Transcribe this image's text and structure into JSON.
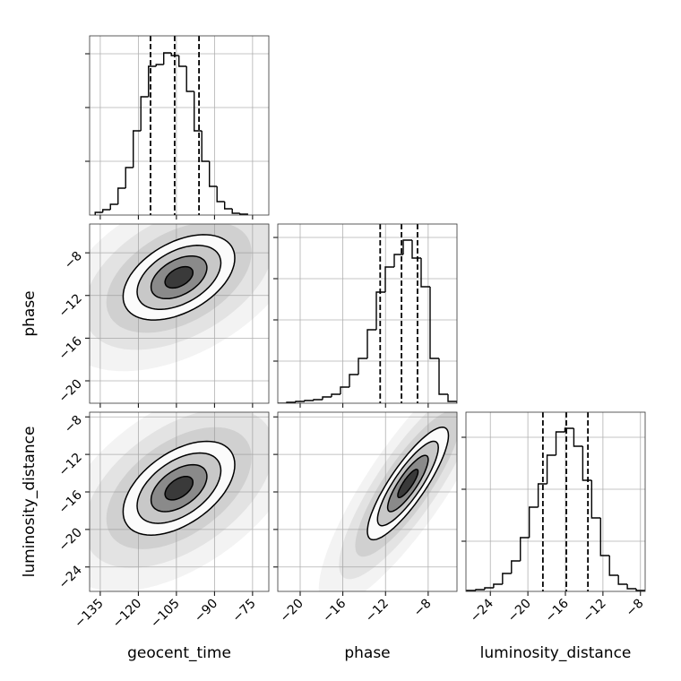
{
  "chart_data": {
    "type": "corner",
    "grid": true,
    "parameters": [
      {
        "name": "geocent_time",
        "lim": [
          -139.2,
          -68.6
        ],
        "ticks": [
          {
            "value": -135,
            "label": "−135"
          },
          {
            "value": -120,
            "label": "−120"
          },
          {
            "value": -105,
            "label": "−105"
          },
          {
            "value": -90,
            "label": "−90"
          },
          {
            "value": -75,
            "label": "−75"
          }
        ]
      },
      {
        "name": "phase",
        "lim": [
          -22.1,
          -5.3
        ],
        "ticks": [
          {
            "value": -20,
            "label": "−20"
          },
          {
            "value": -16,
            "label": "−16"
          },
          {
            "value": -12,
            "label": "−12"
          },
          {
            "value": -8,
            "label": "−8"
          }
        ]
      },
      {
        "name": "luminosity_distance",
        "lim": [
          -26.6,
          -7.5
        ],
        "ticks": [
          {
            "value": -24,
            "label": "−24"
          },
          {
            "value": -20,
            "label": "−20"
          },
          {
            "value": -16,
            "label": "−16"
          },
          {
            "value": -12,
            "label": "−12"
          },
          {
            "value": -8,
            "label": "−8"
          }
        ]
      }
    ],
    "histograms": [
      {
        "bins": [
          -137,
          -134,
          -131,
          -128,
          -125,
          -122,
          -119,
          -116,
          -113,
          -110,
          -107,
          -104,
          -101,
          -98,
          -95,
          -92,
          -89,
          -86,
          -83,
          -80,
          -77
        ],
        "counts": [
          3,
          6,
          12,
          30,
          53,
          94,
          132,
          166,
          168,
          181,
          178,
          166,
          138,
          94,
          60,
          32,
          15,
          7,
          2,
          1
        ],
        "quantiles": [
          -115.2,
          -105.7,
          -96.1
        ],
        "ylim": [
          0,
          200
        ],
        "yticks": [
          60,
          120,
          180
        ]
      },
      {
        "bins": [
          -22.1,
          -21.26,
          -20.42,
          -19.58,
          -18.74,
          -17.9,
          -17.06,
          -16.22,
          -15.38,
          -14.54,
          -13.7,
          -12.86,
          -12.02,
          -11.18,
          -10.34,
          -9.5,
          -8.66,
          -7.82,
          -6.98,
          -6.14,
          -5.3
        ],
        "counts": [
          0,
          1,
          2,
          3,
          4,
          7,
          10,
          18,
          32,
          50,
          82,
          124,
          152,
          166,
          182,
          162,
          130,
          50,
          10,
          2
        ],
        "quantiles": [
          -12.5,
          -10.5,
          -9.0
        ],
        "ylim": [
          0,
          200
        ],
        "yticks": [
          47,
          93,
          139,
          185
        ]
      },
      {
        "bins": [
          -26.5,
          -25.55,
          -24.6,
          -23.65,
          -22.7,
          -21.75,
          -20.8,
          -19.85,
          -18.9,
          -17.95,
          -17,
          -16.05,
          -15.1,
          -14.15,
          -13.2,
          -12.25,
          -11.3,
          -10.35,
          -9.4,
          -8.45,
          -7.5
        ],
        "counts": [
          1,
          2,
          4,
          8,
          20,
          34,
          60,
          94,
          120,
          152,
          178,
          182,
          162,
          124,
          82,
          40,
          18,
          8,
          3,
          1
        ],
        "quantiles": [
          -18.4,
          -15.9,
          -13.6
        ],
        "ylim": [
          0,
          200
        ],
        "yticks": [
          56,
          114,
          172
        ]
      }
    ],
    "pairs": [
      {
        "center": [
          -104,
          -10.3
        ],
        "sigma": [
          11,
          2.0
        ],
        "rho": 0.45,
        "levels": [
          0.5,
          1,
          1.5,
          2
        ]
      },
      {
        "center": [
          -104,
          -15.6
        ],
        "sigma": [
          11,
          2.5
        ],
        "rho": 0.5,
        "levels": [
          0.5,
          1,
          1.5,
          2
        ]
      },
      {
        "center": [
          -9.9,
          -15.1
        ],
        "sigma": [
          1.9,
          3.0
        ],
        "rho": 0.85,
        "levels": [
          0.5,
          1,
          1.5,
          2
        ]
      }
    ]
  }
}
